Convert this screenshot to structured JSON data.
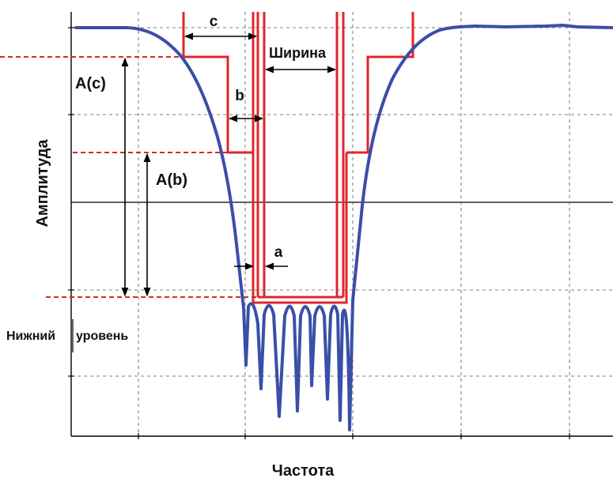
{
  "labels": {
    "y_axis": "Амплитуда",
    "x_axis": "Частота",
    "width": "Ширина",
    "a": "a",
    "b": "b",
    "c": "c",
    "amp_c": "A(c)",
    "amp_b": "A(b)",
    "bottom_level_left": "Нижний",
    "bottom_level_right": "уровень"
  },
  "colors": {
    "response_curve": "#3a4fa8",
    "mask": "#e0262b",
    "mask_level_dashed": "#d62a2a",
    "grid": "#000000",
    "arrows": "#000000"
  }
}
